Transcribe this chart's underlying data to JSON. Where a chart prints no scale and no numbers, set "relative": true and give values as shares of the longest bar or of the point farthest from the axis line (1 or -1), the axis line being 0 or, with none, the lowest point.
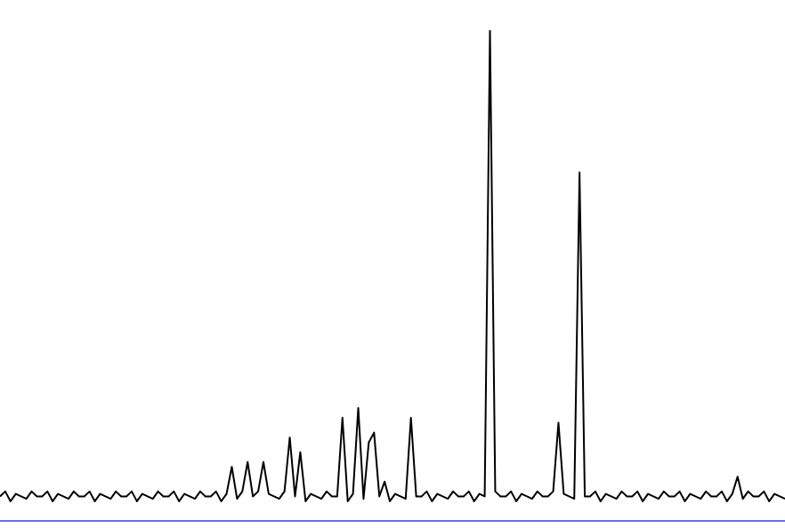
{
  "chart_data": {
    "type": "line",
    "relative": true,
    "color": "#000000",
    "marker": "none",
    "categories": [
      null,
      null,
      null,
      null,
      null,
      null,
      null,
      null,
      null,
      null,
      null,
      null,
      null,
      null,
      null,
      null,
      null,
      null,
      null,
      null,
      null,
      null,
      null,
      null,
      null,
      null,
      null,
      null,
      null,
      null,
      null,
      null,
      null,
      null,
      null,
      null,
      null,
      null,
      null,
      null,
      null,
      null,
      null,
      null,
      null,
      null,
      null,
      null,
      null,
      null,
      null,
      null,
      null,
      null,
      null,
      null,
      null,
      null,
      null,
      null,
      null,
      null,
      null,
      null,
      null,
      null,
      null,
      null,
      null,
      null,
      null,
      null,
      null,
      null,
      null,
      null,
      null,
      null,
      null,
      null,
      null,
      null,
      null,
      null,
      null,
      null,
      null,
      null,
      null,
      null,
      null,
      null,
      null,
      null,
      null,
      null,
      null,
      null,
      null,
      null,
      null,
      null,
      null,
      null,
      null,
      null,
      null,
      null,
      null,
      null,
      null,
      null,
      null,
      null,
      null,
      null,
      null,
      null,
      null,
      null,
      null,
      null,
      null,
      null,
      null,
      null,
      null,
      null,
      null,
      null,
      null,
      null,
      null,
      null,
      null,
      null,
      null,
      null,
      null,
      null,
      null,
      null,
      null,
      null,
      null,
      null,
      null,
      null,
      null,
      null
    ],
    "values": [
      0.05,
      0.06,
      0.04,
      0.055,
      0.05,
      0.045,
      0.06,
      0.05,
      0.05,
      0.06,
      0.04,
      0.055,
      0.05,
      0.045,
      0.06,
      0.05,
      0.05,
      0.06,
      0.04,
      0.055,
      0.05,
      0.045,
      0.06,
      0.05,
      0.05,
      0.06,
      0.04,
      0.055,
      0.05,
      0.045,
      0.06,
      0.05,
      0.05,
      0.06,
      0.04,
      0.055,
      0.05,
      0.045,
      0.06,
      0.05,
      0.05,
      0.06,
      0.04,
      0.055,
      0.11,
      0.045,
      0.06,
      0.12,
      0.05,
      0.06,
      0.12,
      0.055,
      0.05,
      0.045,
      0.06,
      0.17,
      0.05,
      0.14,
      0.04,
      0.055,
      0.05,
      0.045,
      0.06,
      0.05,
      0.05,
      0.21,
      0.04,
      0.055,
      0.23,
      0.045,
      0.16,
      0.18,
      0.05,
      0.08,
      0.04,
      0.055,
      0.05,
      0.045,
      0.21,
      0.05,
      0.05,
      0.06,
      0.04,
      0.055,
      0.05,
      0.045,
      0.06,
      0.05,
      0.05,
      0.06,
      0.04,
      0.055,
      0.05,
      1,
      0.06,
      0.05,
      0.05,
      0.06,
      0.04,
      0.055,
      0.05,
      0.045,
      0.06,
      0.05,
      0.05,
      0.06,
      0.2,
      0.055,
      0.05,
      0.045,
      0.71,
      0.05,
      0.05,
      0.06,
      0.04,
      0.055,
      0.05,
      0.045,
      0.06,
      0.05,
      0.05,
      0.06,
      0.04,
      0.055,
      0.05,
      0.045,
      0.06,
      0.05,
      0.05,
      0.06,
      0.04,
      0.055,
      0.05,
      0.045,
      0.06,
      0.05,
      0.05,
      0.06,
      0.04,
      0.055,
      0.09,
      0.045,
      0.06,
      0.05,
      0.05,
      0.06,
      0.04,
      0.055,
      0.05,
      0.045
    ]
  }
}
